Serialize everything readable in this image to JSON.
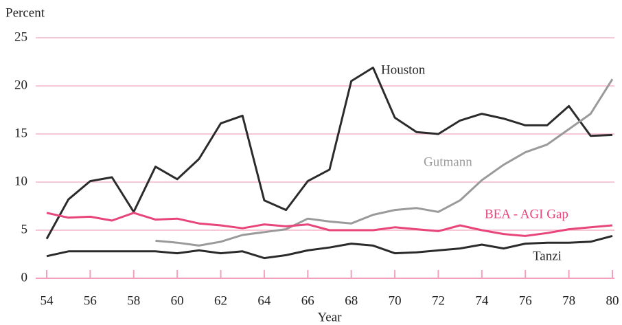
{
  "chart_data": {
    "type": "line",
    "ylabel": "Percent",
    "xlabel": "Year",
    "x": [
      54,
      55,
      56,
      57,
      58,
      59,
      60,
      61,
      62,
      63,
      64,
      65,
      66,
      67,
      68,
      69,
      70,
      71,
      72,
      73,
      74,
      75,
      76,
      77,
      78,
      79,
      80
    ],
    "series": [
      {
        "name": "Houston",
        "color": "#2b2b2b",
        "values": [
          4.1,
          8.2,
          10.1,
          10.5,
          6.9,
          11.6,
          10.3,
          12.4,
          16.1,
          16.9,
          8.1,
          7.1,
          10.1,
          11.3,
          20.5,
          21.9,
          16.7,
          15.2,
          15.0,
          16.4,
          17.1,
          16.6,
          15.9,
          15.9,
          17.9,
          14.8,
          14.9
        ]
      },
      {
        "name": "Gutmann",
        "color": "#9a9a9a",
        "values": [
          null,
          null,
          null,
          null,
          null,
          3.9,
          3.7,
          3.4,
          3.8,
          4.5,
          4.8,
          5.1,
          6.2,
          5.9,
          5.7,
          6.6,
          7.1,
          7.3,
          6.9,
          8.1,
          10.2,
          11.8,
          13.1,
          13.9,
          15.5,
          17.1,
          20.7
        ]
      },
      {
        "name": "BEA - AGI Gap",
        "color": "#e8457a",
        "values": [
          6.8,
          6.3,
          6.4,
          6.0,
          6.8,
          6.1,
          6.2,
          5.7,
          5.5,
          5.2,
          5.6,
          5.4,
          5.6,
          5.0,
          5.0,
          5.0,
          5.3,
          5.1,
          4.9,
          5.5,
          5.0,
          4.6,
          4.4,
          4.7,
          5.1,
          5.3,
          5.5
        ]
      },
      {
        "name": "Tanzi",
        "color": "#2b2b2b",
        "values": [
          2.3,
          2.8,
          2.8,
          2.8,
          2.8,
          2.8,
          2.6,
          2.9,
          2.6,
          2.8,
          2.1,
          2.4,
          2.9,
          3.2,
          3.6,
          3.4,
          2.6,
          2.7,
          2.9,
          3.1,
          3.5,
          3.1,
          3.6,
          3.7,
          3.7,
          3.8,
          4.4
        ]
      }
    ],
    "xlim": [
      53.5,
      80.1
    ],
    "xticks": [
      54,
      56,
      58,
      60,
      62,
      64,
      66,
      68,
      70,
      72,
      74,
      76,
      78,
      80
    ],
    "ylim": [
      0,
      25
    ],
    "yticks": [
      0,
      5,
      10,
      15,
      20,
      25
    ],
    "grid": true
  }
}
